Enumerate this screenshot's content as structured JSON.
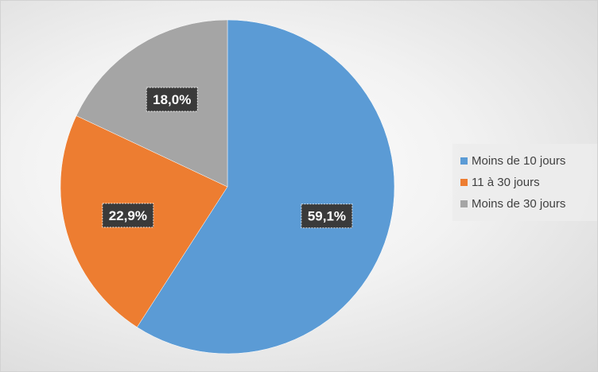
{
  "chart_data": {
    "type": "pie",
    "categories": [
      "Moins de 10 jours",
      "11 à 30 jours",
      "Moins de 30 jours"
    ],
    "values": [
      59.1,
      22.9,
      18.0
    ],
    "value_labels": [
      "59,1%",
      "22,9%",
      "18,0%"
    ],
    "colors": [
      "#5b9bd5",
      "#ed7d31",
      "#a5a5a5"
    ],
    "start_angle_deg": 0,
    "direction": "clockwise",
    "legend_position": "right",
    "title": ""
  }
}
